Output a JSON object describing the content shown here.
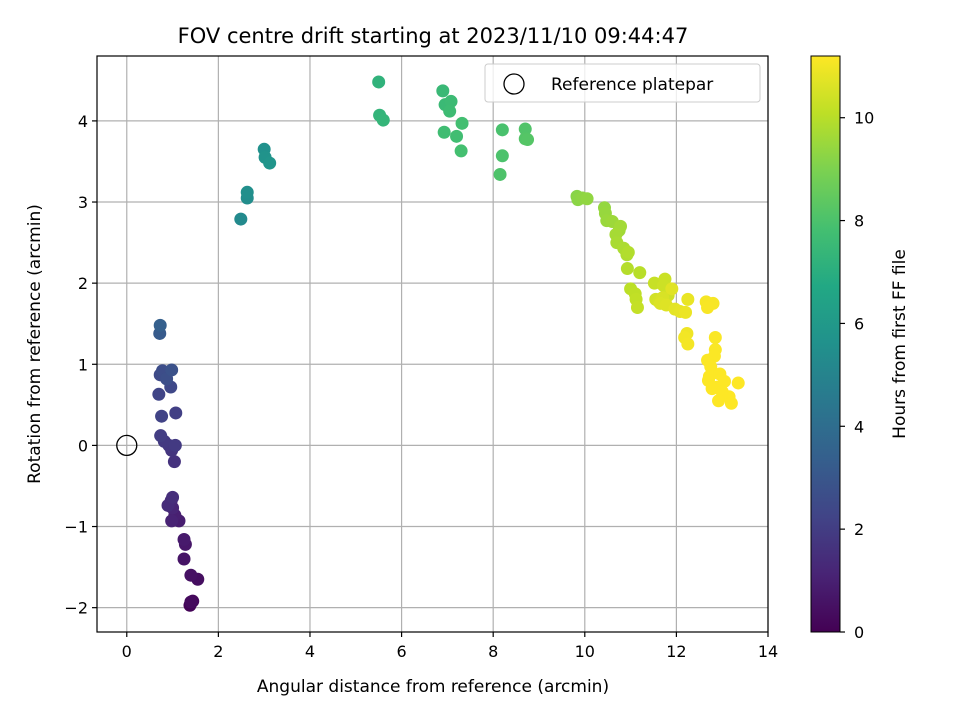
{
  "chart_data": {
    "type": "scatter",
    "title": "FOV centre drift starting at 2023/11/10 09:44:47",
    "xlabel": "Angular distance from reference (arcmin)",
    "ylabel": "Rotation from reference (arcmin)",
    "xlim": [
      -0.65,
      14.0
    ],
    "ylim": [
      -2.3,
      4.8
    ],
    "xticks": [
      0,
      2,
      4,
      6,
      8,
      10,
      12,
      14
    ],
    "yticks": [
      -2,
      -1,
      0,
      1,
      2,
      3,
      4
    ],
    "grid": true,
    "colormap": "viridis",
    "colorbar": {
      "label": "Hours from first FF file",
      "range": [
        0,
        11.2
      ],
      "ticks": [
        0,
        2,
        4,
        6,
        8,
        10
      ]
    },
    "legend": {
      "position": "top-right",
      "entries": [
        {
          "label": "Reference platepar",
          "marker": "hollow-circle",
          "point": [
            0,
            0
          ]
        }
      ]
    },
    "points": [
      [
        1.38,
        -1.97,
        0.1
      ],
      [
        1.44,
        -1.92,
        0.2
      ],
      [
        1.4,
        -1.93,
        0.3
      ],
      [
        1.55,
        -1.65,
        0.4
      ],
      [
        1.4,
        -1.6,
        0.5
      ],
      [
        1.25,
        -1.4,
        0.6
      ],
      [
        1.28,
        -1.22,
        0.7
      ],
      [
        1.25,
        -1.16,
        0.8
      ],
      [
        1.14,
        -0.93,
        0.9
      ],
      [
        1.05,
        -0.86,
        1.0
      ],
      [
        0.98,
        -0.93,
        1.1
      ],
      [
        1.0,
        -0.77,
        1.2
      ],
      [
        0.97,
        -0.68,
        1.3
      ],
      [
        0.9,
        -0.74,
        1.4
      ],
      [
        1.0,
        -0.64,
        1.5
      ],
      [
        1.04,
        -0.2,
        1.6
      ],
      [
        0.98,
        -0.06,
        1.7
      ],
      [
        0.92,
        0.0,
        1.8
      ],
      [
        0.82,
        0.05,
        1.85
      ],
      [
        1.06,
        0.0,
        1.9
      ],
      [
        0.74,
        0.12,
        2.0
      ],
      [
        1.07,
        0.4,
        2.1
      ],
      [
        0.76,
        0.36,
        2.2
      ],
      [
        0.7,
        0.63,
        2.3
      ],
      [
        0.96,
        0.72,
        2.4
      ],
      [
        0.73,
        0.87,
        2.5
      ],
      [
        0.78,
        0.92,
        2.6
      ],
      [
        0.87,
        0.82,
        2.7
      ],
      [
        0.98,
        0.93,
        2.8
      ],
      [
        0.72,
        1.38,
        3.2
      ],
      [
        0.73,
        1.48,
        3.4
      ],
      [
        2.49,
        2.79,
        5.3
      ],
      [
        2.63,
        3.05,
        5.4
      ],
      [
        2.63,
        3.12,
        5.5
      ],
      [
        3.0,
        3.65,
        5.6
      ],
      [
        3.02,
        3.55,
        5.7
      ],
      [
        3.12,
        3.48,
        5.8
      ],
      [
        5.5,
        4.48,
        7.2
      ],
      [
        5.52,
        4.07,
        7.3
      ],
      [
        5.6,
        4.01,
        7.35
      ],
      [
        6.9,
        4.37,
        7.5
      ],
      [
        6.95,
        4.2,
        7.55
      ],
      [
        7.08,
        4.24,
        7.6
      ],
      [
        7.05,
        4.12,
        7.65
      ],
      [
        6.93,
        3.86,
        7.7
      ],
      [
        7.2,
        3.81,
        7.75
      ],
      [
        7.32,
        3.97,
        7.8
      ],
      [
        7.3,
        3.63,
        7.85
      ],
      [
        8.2,
        3.89,
        7.95
      ],
      [
        8.2,
        3.57,
        8.0
      ],
      [
        8.15,
        3.34,
        8.05
      ],
      [
        8.7,
        3.9,
        8.1
      ],
      [
        8.7,
        3.78,
        8.15
      ],
      [
        8.75,
        3.77,
        8.2
      ],
      [
        9.83,
        3.07,
        9.2
      ],
      [
        9.85,
        3.03,
        9.25
      ],
      [
        9.95,
        3.05,
        9.3
      ],
      [
        10.05,
        3.04,
        9.35
      ],
      [
        10.43,
        2.93,
        9.4
      ],
      [
        10.45,
        2.86,
        9.45
      ],
      [
        10.48,
        2.77,
        9.5
      ],
      [
        10.6,
        2.76,
        9.55
      ],
      [
        10.75,
        2.65,
        9.6
      ],
      [
        10.78,
        2.7,
        9.65
      ],
      [
        10.68,
        2.6,
        9.7
      ],
      [
        10.7,
        2.5,
        9.75
      ],
      [
        10.85,
        2.43,
        9.8
      ],
      [
        10.92,
        2.35,
        9.85
      ],
      [
        10.95,
        2.38,
        9.9
      ],
      [
        10.93,
        2.18,
        9.95
      ],
      [
        11.2,
        2.13,
        10.0
      ],
      [
        11.0,
        1.93,
        10.05
      ],
      [
        11.1,
        1.87,
        10.1
      ],
      [
        11.12,
        1.8,
        10.15
      ],
      [
        11.15,
        1.7,
        10.2
      ],
      [
        11.52,
        2.0,
        10.25
      ],
      [
        11.75,
        2.05,
        10.3
      ],
      [
        11.72,
        1.97,
        10.35
      ],
      [
        11.82,
        1.85,
        10.4
      ],
      [
        11.55,
        1.8,
        10.45
      ],
      [
        11.62,
        1.77,
        10.5
      ],
      [
        11.7,
        1.82,
        10.55
      ],
      [
        11.65,
        1.75,
        10.6
      ],
      [
        11.78,
        1.73,
        10.65
      ],
      [
        11.9,
        1.93,
        10.7
      ],
      [
        11.97,
        1.68,
        10.75
      ],
      [
        12.08,
        1.65,
        10.8
      ],
      [
        12.25,
        1.8,
        10.85
      ],
      [
        12.2,
        1.64,
        10.9
      ],
      [
        12.23,
        1.38,
        10.95
      ],
      [
        12.18,
        1.33,
        11.0
      ],
      [
        12.25,
        1.25,
        11.05
      ],
      [
        12.65,
        1.77,
        11.08
      ],
      [
        12.8,
        1.75,
        11.1
      ],
      [
        12.68,
        1.7,
        11.12
      ],
      [
        12.85,
        1.33,
        11.14
      ],
      [
        12.85,
        1.18,
        11.15
      ],
      [
        12.83,
        1.1,
        11.16
      ],
      [
        12.68,
        1.05,
        11.17
      ],
      [
        12.75,
        0.97,
        11.18
      ],
      [
        12.72,
        0.85,
        11.18
      ],
      [
        12.7,
        0.8,
        11.19
      ],
      [
        12.95,
        0.88,
        11.19
      ],
      [
        13.05,
        0.79,
        11.2
      ],
      [
        13.35,
        0.77,
        11.2
      ],
      [
        12.78,
        0.7,
        11.2
      ],
      [
        12.9,
        0.72,
        11.2
      ],
      [
        13.0,
        0.66,
        11.2
      ],
      [
        13.15,
        0.6,
        11.2
      ],
      [
        12.92,
        0.55,
        11.2
      ],
      [
        13.2,
        0.52,
        11.2
      ]
    ]
  }
}
